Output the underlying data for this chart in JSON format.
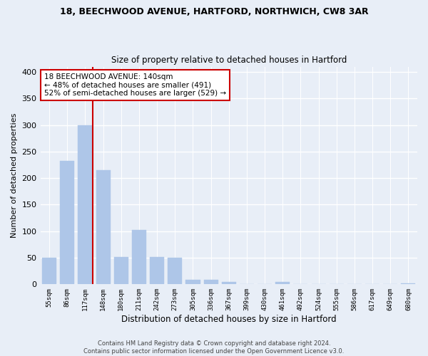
{
  "title1": "18, BEECHWOOD AVENUE, HARTFORD, NORTHWICH, CW8 3AR",
  "title2": "Size of property relative to detached houses in Hartford",
  "xlabel": "Distribution of detached houses by size in Hartford",
  "ylabel": "Number of detached properties",
  "categories": [
    "55sqm",
    "86sqm",
    "117sqm",
    "148sqm",
    "180sqm",
    "211sqm",
    "242sqm",
    "273sqm",
    "305sqm",
    "336sqm",
    "367sqm",
    "399sqm",
    "430sqm",
    "461sqm",
    "492sqm",
    "524sqm",
    "555sqm",
    "586sqm",
    "617sqm",
    "649sqm",
    "680sqm"
  ],
  "values": [
    50,
    232,
    300,
    215,
    52,
    103,
    52,
    50,
    9,
    9,
    5,
    0,
    0,
    4,
    0,
    0,
    0,
    0,
    0,
    0,
    2
  ],
  "bar_color": "#aec6e8",
  "bar_edge_color": "#aec6e8",
  "annotation_line1": "18 BEECHWOOD AVENUE: 140sqm",
  "annotation_line2": "← 48% of detached houses are smaller (491)",
  "annotation_line3": "52% of semi-detached houses are larger (529) →",
  "vline_color": "#cc0000",
  "annotation_box_edgecolor": "#cc0000",
  "footnote1": "Contains HM Land Registry data © Crown copyright and database right 2024.",
  "footnote2": "Contains public sector information licensed under the Open Government Licence v3.0.",
  "bg_color": "#e8eef7",
  "grid_color": "#ffffff",
  "ylim": [
    0,
    410
  ],
  "vline_bin_index": 2
}
